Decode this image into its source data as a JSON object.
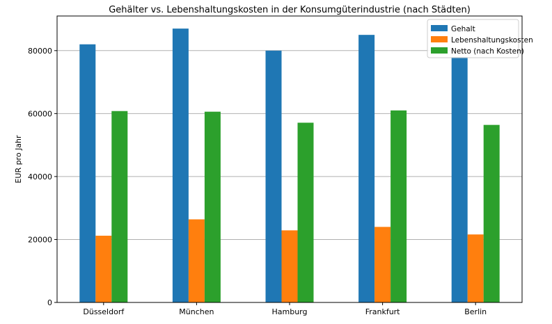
{
  "chart_data": {
    "type": "bar",
    "title": "Gehälter vs. Lebenshaltungskosten in der Konsumgüterindustrie (nach Städten)",
    "xlabel": "",
    "ylabel": "EUR pro Jahr",
    "categories": [
      "Düsseldorf",
      "München",
      "Hamburg",
      "Frankfurt",
      "Berlin"
    ],
    "series": [
      {
        "name": "Gehalt",
        "color": "#1f77b4",
        "values": [
          82000,
          87000,
          80000,
          85000,
          78000
        ]
      },
      {
        "name": "Lebenshaltungskosten",
        "color": "#ff7f0e",
        "values": [
          21200,
          26400,
          22900,
          24000,
          21600
        ]
      },
      {
        "name": "Netto (nach Kosten)",
        "color": "#2ca02c",
        "values": [
          60800,
          60600,
          57100,
          61000,
          56400
        ]
      }
    ],
    "ylim": [
      0,
      91000
    ],
    "yticks": [
      0,
      20000,
      40000,
      60000,
      80000
    ],
    "grid": "y",
    "legend": "top-right"
  }
}
